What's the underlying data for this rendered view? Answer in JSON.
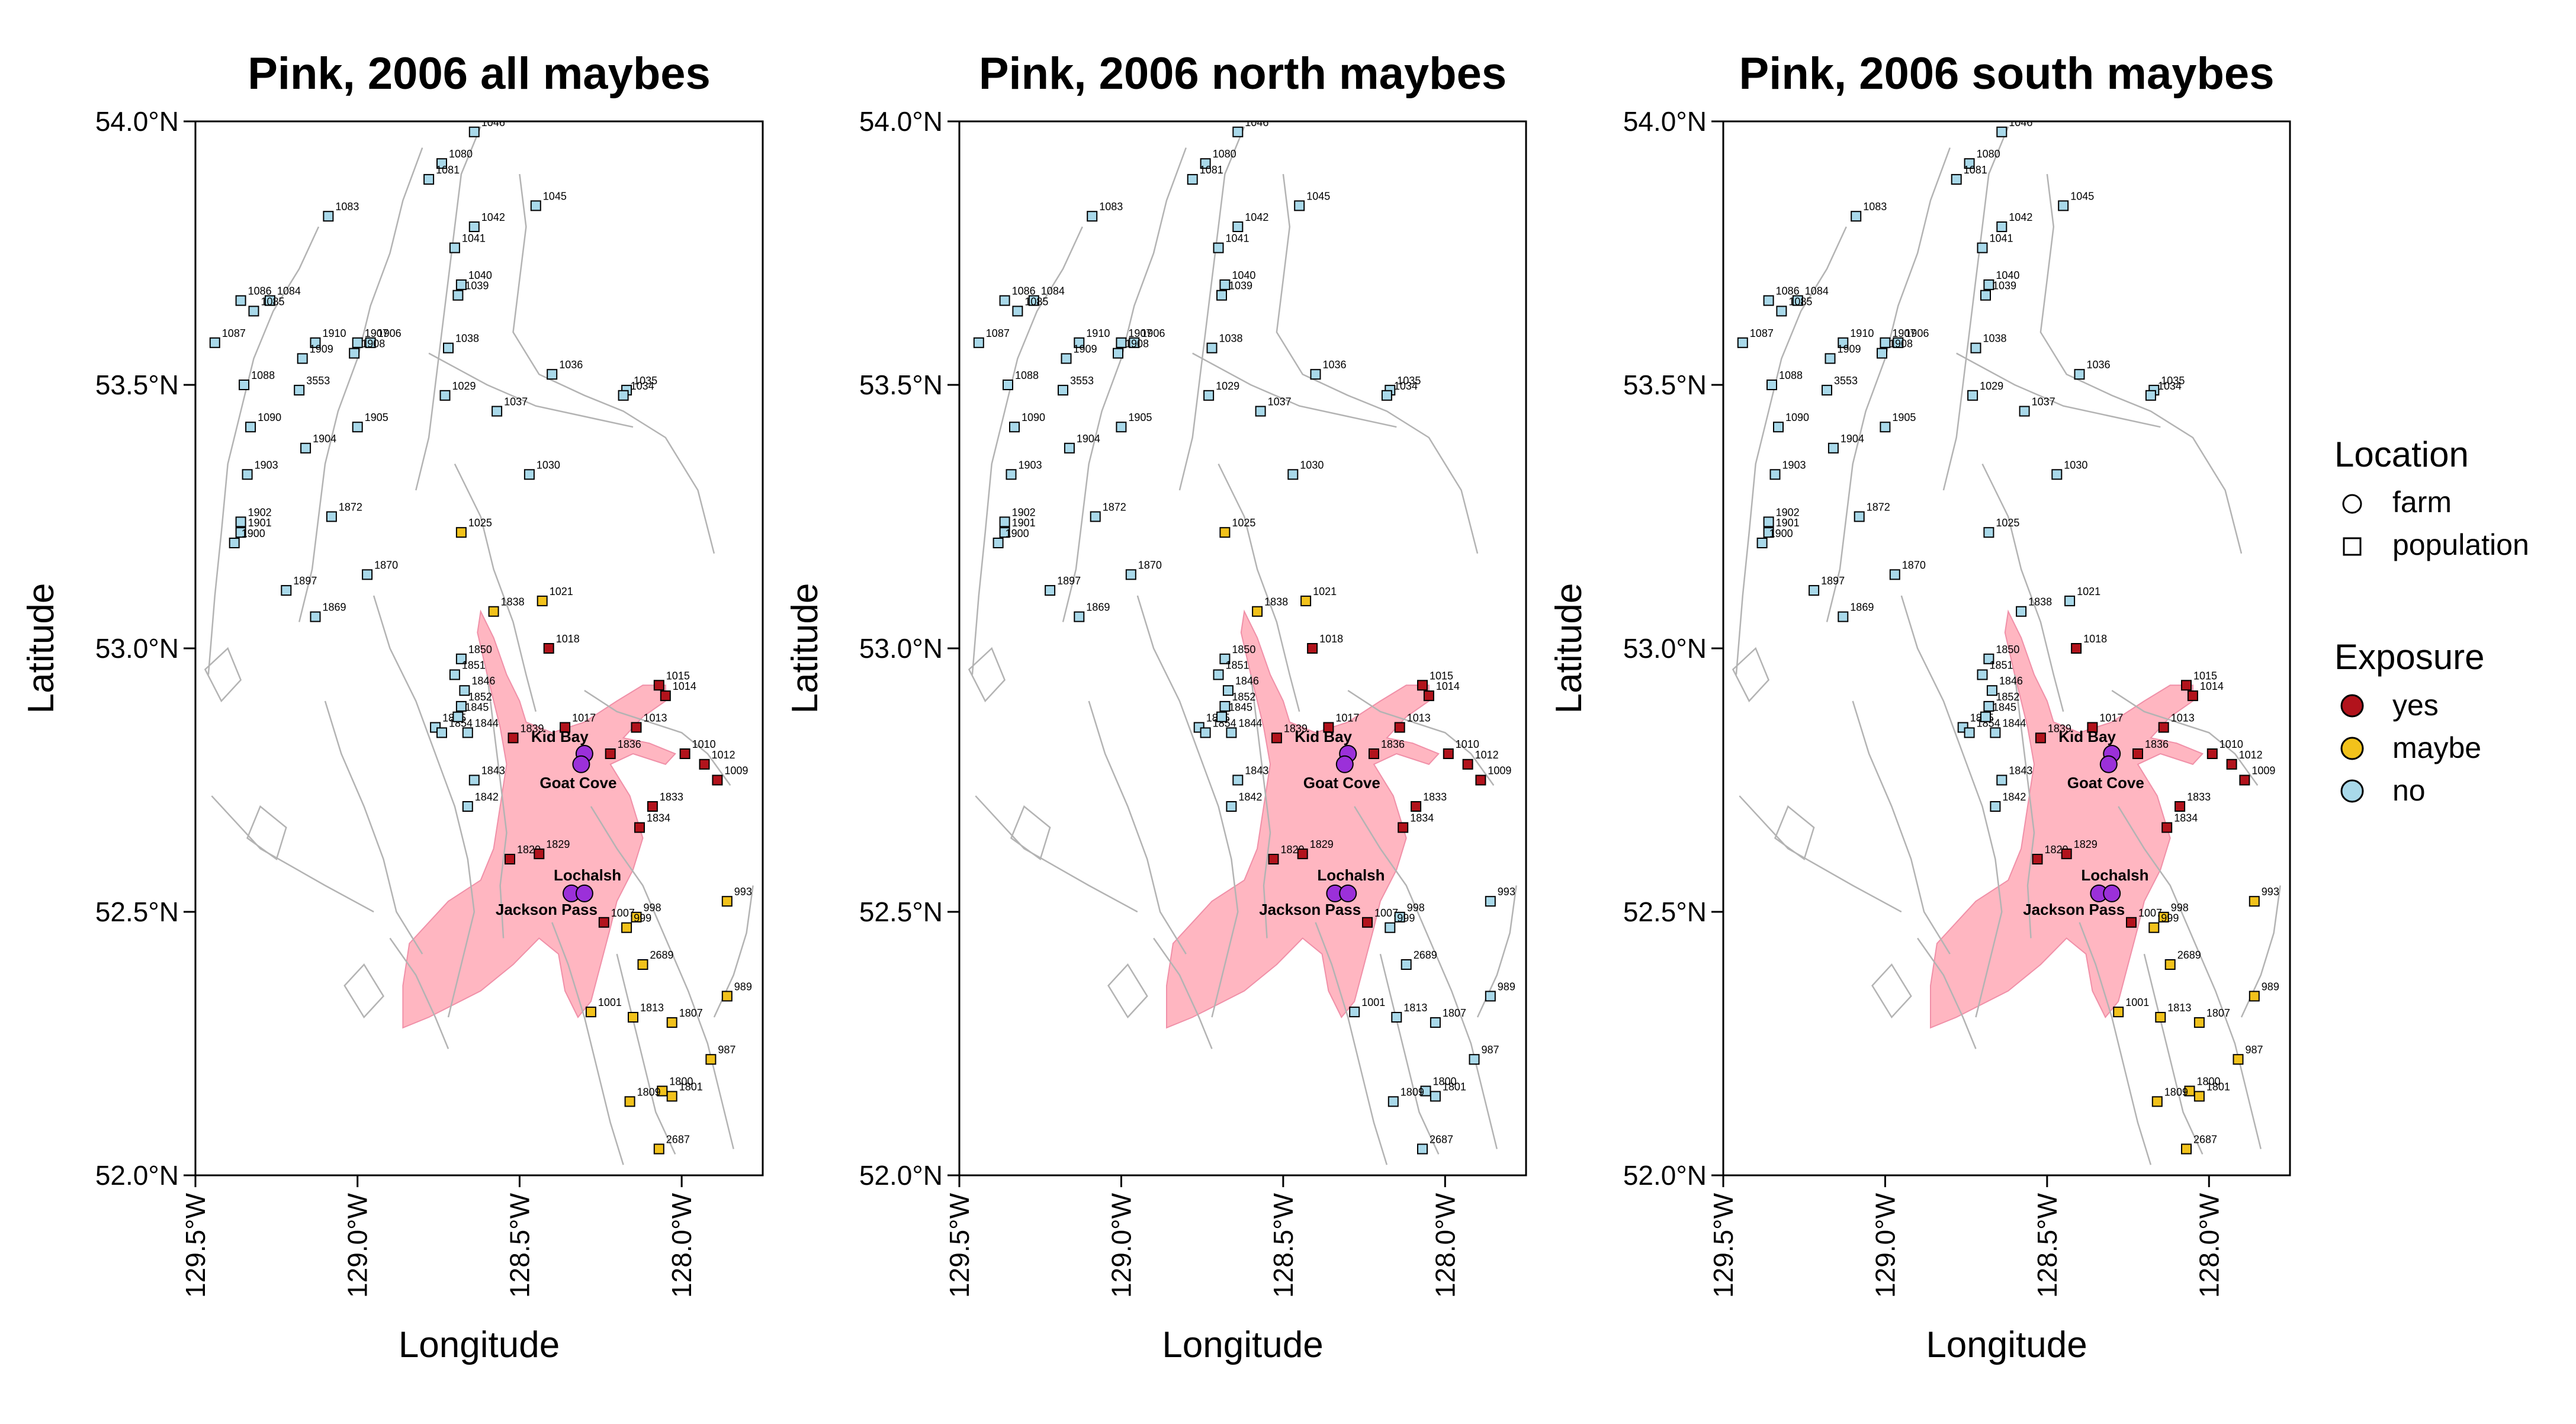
{
  "panels": [
    {
      "title": "Pink, 2006 all maybes",
      "variant": "all"
    },
    {
      "title": "Pink, 2006 north maybes",
      "variant": "north"
    },
    {
      "title": "Pink, 2006 south maybes",
      "variant": "south"
    }
  ],
  "axes": {
    "xlabel": "Longitude",
    "ylabel": "Latitude",
    "lat_ticks": [
      "54.0°N",
      "53.5°N",
      "53.0°N",
      "52.5°N",
      "52.0°N"
    ],
    "lon_ticks": [
      "129.5°W",
      "129.0°W",
      "128.5°W",
      "128.0°W"
    ]
  },
  "legend": {
    "location_title": "Location",
    "location_items": [
      {
        "label": "farm",
        "shape": "circle"
      },
      {
        "label": "population",
        "shape": "square"
      }
    ],
    "exposure_title": "Exposure",
    "exposure_items": [
      {
        "label": "yes",
        "color": "#b2131c"
      },
      {
        "label": "maybe",
        "color": "#f2c21b"
      },
      {
        "label": "no",
        "color": "#a9d9ea"
      }
    ]
  },
  "colors": {
    "yes": "#b2131c",
    "maybe": "#f2c21b",
    "no": "#a9d9ea",
    "farm": "#9b30d9",
    "exposure_zone": "#ffb6c1",
    "coastline": "#b3b3b3"
  },
  "farm_labels": [
    "Kid Bay",
    "Goat Cove",
    "Lochalsh",
    "Jackson Pass"
  ],
  "chart_data": {
    "type": "map",
    "xlim": [
      "129.5°W",
      "127.75°W"
    ],
    "ylim": [
      "52.0°N",
      "54.0°N"
    ],
    "farms": [
      {
        "name": "Kid Bay",
        "lat": 52.8,
        "lon": 128.3
      },
      {
        "name": "Goat Cove",
        "lat": 52.78,
        "lon": 128.31
      },
      {
        "name": "Lochalsh",
        "lat": 52.535,
        "lon": 128.34
      },
      {
        "name": "Jackson Pass",
        "lat": 52.535,
        "lon": 128.3
      }
    ],
    "populations": [
      {
        "id": "1046",
        "lat": 53.98,
        "lon": 128.64
      },
      {
        "id": "1080",
        "lat": 53.92,
        "lon": 128.74
      },
      {
        "id": "1081",
        "lat": 53.89,
        "lon": 128.78
      },
      {
        "id": "1045",
        "lat": 53.84,
        "lon": 128.45
      },
      {
        "id": "1042",
        "lat": 53.8,
        "lon": 128.64
      },
      {
        "id": "1083",
        "lat": 53.82,
        "lon": 129.09
      },
      {
        "id": "1041",
        "lat": 53.76,
        "lon": 128.7
      },
      {
        "id": "1040",
        "lat": 53.69,
        "lon": 128.68
      },
      {
        "id": "1039",
        "lat": 53.67,
        "lon": 128.69
      },
      {
        "id": "1086",
        "lat": 53.66,
        "lon": 129.36
      },
      {
        "id": "1084",
        "lat": 53.66,
        "lon": 129.27
      },
      {
        "id": "1085",
        "lat": 53.64,
        "lon": 129.32
      },
      {
        "id": "1907",
        "lat": 53.58,
        "lon": 129.0
      },
      {
        "id": "1910",
        "lat": 53.58,
        "lon": 129.13
      },
      {
        "id": "1906",
        "lat": 53.58,
        "lon": 128.96
      },
      {
        "id": "1908",
        "lat": 53.56,
        "lon": 129.01
      },
      {
        "id": "1087",
        "lat": 53.58,
        "lon": 129.44
      },
      {
        "id": "1909",
        "lat": 53.55,
        "lon": 129.17
      },
      {
        "id": "1038",
        "lat": 53.57,
        "lon": 128.72
      },
      {
        "id": "1036",
        "lat": 53.52,
        "lon": 128.4
      },
      {
        "id": "1035",
        "lat": 53.49,
        "lon": 128.17
      },
      {
        "id": "1034",
        "lat": 53.48,
        "lon": 128.18
      },
      {
        "id": "1029",
        "lat": 53.48,
        "lon": 128.73
      },
      {
        "id": "1088",
        "lat": 53.5,
        "lon": 129.35
      },
      {
        "id": "3553",
        "lat": 53.49,
        "lon": 129.18
      },
      {
        "id": "1037",
        "lat": 53.45,
        "lon": 128.57
      },
      {
        "id": "1905",
        "lat": 53.42,
        "lon": 129.0
      },
      {
        "id": "1090",
        "lat": 53.42,
        "lon": 129.33
      },
      {
        "id": "1904",
        "lat": 53.38,
        "lon": 129.16
      },
      {
        "id": "1030",
        "lat": 53.33,
        "lon": 128.47
      },
      {
        "id": "1903",
        "lat": 53.33,
        "lon": 129.34
      },
      {
        "id": "1872",
        "lat": 53.25,
        "lon": 129.08
      },
      {
        "id": "1902",
        "lat": 53.24,
        "lon": 129.36
      },
      {
        "id": "1901",
        "lat": 53.22,
        "lon": 129.36
      },
      {
        "id": "1900",
        "lat": 53.2,
        "lon": 129.38
      },
      {
        "id": "1025",
        "lat": 53.22,
        "lon": 128.68
      },
      {
        "id": "1870",
        "lat": 53.14,
        "lon": 128.97
      },
      {
        "id": "1897",
        "lat": 53.11,
        "lon": 129.22
      },
      {
        "id": "1869",
        "lat": 53.06,
        "lon": 129.13
      },
      {
        "id": "1838",
        "lat": 53.07,
        "lon": 128.58
      },
      {
        "id": "1021",
        "lat": 53.09,
        "lon": 128.43
      },
      {
        "id": "1018",
        "lat": 53.0,
        "lon": 128.41
      },
      {
        "id": "1850",
        "lat": 52.98,
        "lon": 128.68
      },
      {
        "id": "1851",
        "lat": 52.95,
        "lon": 128.7
      },
      {
        "id": "1846",
        "lat": 52.92,
        "lon": 128.67
      },
      {
        "id": "1852",
        "lat": 52.89,
        "lon": 128.68
      },
      {
        "id": "1015",
        "lat": 52.93,
        "lon": 128.07
      },
      {
        "id": "1014",
        "lat": 52.91,
        "lon": 128.05
      },
      {
        "id": "1013",
        "lat": 52.85,
        "lon": 128.14
      },
      {
        "id": "1017",
        "lat": 52.85,
        "lon": 128.36
      },
      {
        "id": "1839",
        "lat": 52.83,
        "lon": 128.52
      },
      {
        "id": "1855",
        "lat": 52.85,
        "lon": 128.76
      },
      {
        "id": "1854",
        "lat": 52.84,
        "lon": 128.74
      },
      {
        "id": "1845",
        "lat": 52.87,
        "lon": 128.69
      },
      {
        "id": "1844",
        "lat": 52.84,
        "lon": 128.66
      },
      {
        "id": "1836",
        "lat": 52.8,
        "lon": 128.22
      },
      {
        "id": "1010",
        "lat": 52.8,
        "lon": 127.99
      },
      {
        "id": "1012",
        "lat": 52.78,
        "lon": 127.93
      },
      {
        "id": "1009",
        "lat": 52.75,
        "lon": 127.89
      },
      {
        "id": "1843",
        "lat": 52.75,
        "lon": 128.64
      },
      {
        "id": "1842",
        "lat": 52.7,
        "lon": 128.66
      },
      {
        "id": "1833",
        "lat": 52.7,
        "lon": 128.09
      },
      {
        "id": "1834",
        "lat": 52.66,
        "lon": 128.13
      },
      {
        "id": "1820",
        "lat": 52.6,
        "lon": 128.53
      },
      {
        "id": "1829",
        "lat": 52.61,
        "lon": 128.44
      },
      {
        "id": "1007",
        "lat": 52.48,
        "lon": 128.24
      },
      {
        "id": "998",
        "lat": 52.49,
        "lon": 128.14
      },
      {
        "id": "993",
        "lat": 52.52,
        "lon": 127.86
      },
      {
        "id": "999",
        "lat": 52.47,
        "lon": 128.17
      },
      {
        "id": "2689",
        "lat": 52.4,
        "lon": 128.12
      },
      {
        "id": "989",
        "lat": 52.34,
        "lon": 127.86
      },
      {
        "id": "1001",
        "lat": 52.31,
        "lon": 128.28
      },
      {
        "id": "1813",
        "lat": 52.3,
        "lon": 128.15
      },
      {
        "id": "1807",
        "lat": 52.29,
        "lon": 128.03
      },
      {
        "id": "987",
        "lat": 52.22,
        "lon": 127.91
      },
      {
        "id": "1800",
        "lat": 52.16,
        "lon": 128.06
      },
      {
        "id": "1801",
        "lat": 52.15,
        "lon": 128.03
      },
      {
        "id": "1809",
        "lat": 52.14,
        "lon": 128.16
      },
      {
        "id": "2687",
        "lat": 52.05,
        "lon": 128.07
      }
    ]
  }
}
